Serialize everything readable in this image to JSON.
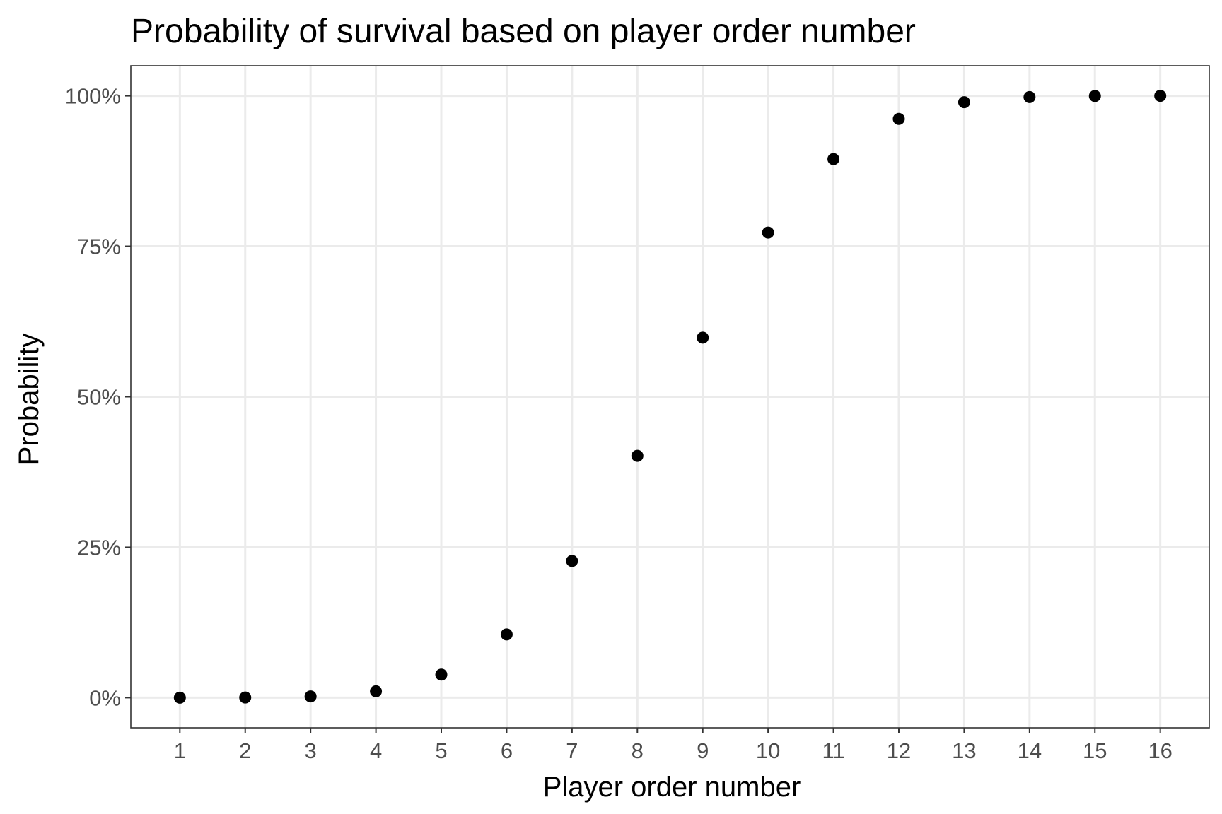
{
  "chart_data": {
    "type": "scatter",
    "title": "Probability of survival based on player order number",
    "xlabel": "Player order number",
    "ylabel": "Probability",
    "x": [
      1,
      2,
      3,
      4,
      5,
      6,
      7,
      8,
      9,
      10,
      11,
      12,
      13,
      14,
      15,
      16
    ],
    "y": [
      2e-05,
      0.0003,
      0.0021,
      0.0106,
      0.0384,
      0.1051,
      0.2272,
      0.4018,
      0.5982,
      0.7728,
      0.8949,
      0.9616,
      0.9894,
      0.9979,
      0.9997,
      1.0
    ],
    "xlim": [
      0.25,
      16.75
    ],
    "ylim": [
      -0.05,
      1.05
    ],
    "x_ticks": [
      1,
      2,
      3,
      4,
      5,
      6,
      7,
      8,
      9,
      10,
      11,
      12,
      13,
      14,
      15,
      16
    ],
    "x_tick_labels": [
      "1",
      "2",
      "3",
      "4",
      "5",
      "6",
      "7",
      "8",
      "9",
      "10",
      "11",
      "12",
      "13",
      "14",
      "15",
      "16"
    ],
    "y_ticks": [
      0,
      0.25,
      0.5,
      0.75,
      1.0
    ],
    "y_tick_labels": [
      "0%",
      "25%",
      "50%",
      "75%",
      "100%"
    ],
    "grid": true,
    "legend": "none",
    "colors": {
      "point": "#000000",
      "grid": "#ebebeb",
      "panel_border": "#333333",
      "tick_label": "#4d4d4d",
      "background": "#ffffff"
    }
  }
}
